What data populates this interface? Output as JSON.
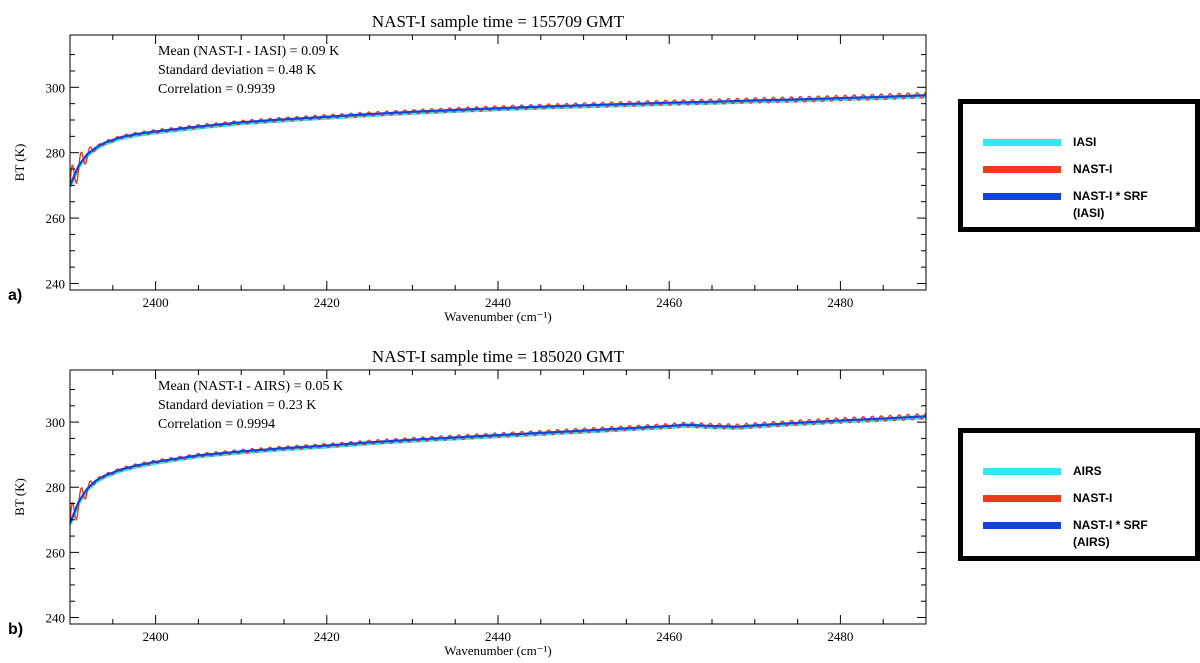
{
  "colors": {
    "ref": "#33e6f0",
    "nast": "#f23a1a",
    "conv": "#1144dd",
    "frame": "#000000"
  },
  "chart_data": [
    {
      "type": "line",
      "panel": "a)",
      "title": "NAST-I sample time = 155709 GMT",
      "xlabel": "Wavenumber (cm⁻¹)",
      "ylabel": "BT (K)",
      "xlim": [
        2390,
        2490
      ],
      "ylim": [
        238,
        316
      ],
      "xticks": [
        2400,
        2420,
        2440,
        2460,
        2480
      ],
      "yticks": [
        240,
        260,
        280,
        300
      ],
      "grid": false,
      "legend_position": "right",
      "annotations": [
        "Mean (NAST-I - IASI) = 0.09 K",
        "Standard deviation = 0.48 K",
        "Correlation = 0.9939"
      ],
      "series": [
        {
          "name": "IASI",
          "color": "ref",
          "x": [
            2390,
            2391,
            2392,
            2393,
            2394,
            2396,
            2398,
            2400,
            2405,
            2410,
            2415,
            2420,
            2425,
            2430,
            2435,
            2440,
            2445,
            2450,
            2455,
            2460,
            2465,
            2470,
            2475,
            2480,
            2485,
            2490
          ],
          "y": [
            270,
            276,
            279.5,
            281.5,
            283,
            284.8,
            285.8,
            286.5,
            288,
            289.3,
            290.2,
            291,
            291.8,
            292.5,
            293.1,
            293.6,
            294.1,
            294.5,
            294.9,
            295.3,
            295.6,
            296,
            296.3,
            296.7,
            297.1,
            297.6
          ]
        },
        {
          "name": "NAST-I",
          "color": "nast",
          "x": [
            2390,
            2391,
            2392,
            2393,
            2394,
            2396,
            2398,
            2400,
            2405,
            2410,
            2415,
            2420,
            2425,
            2430,
            2435,
            2440,
            2445,
            2450,
            2455,
            2460,
            2465,
            2470,
            2475,
            2480,
            2485,
            2490
          ],
          "y": [
            270,
            276,
            279.5,
            281.5,
            283,
            284.8,
            285.8,
            286.5,
            288,
            289.3,
            290.2,
            291,
            291.8,
            292.5,
            293.1,
            293.6,
            294.1,
            294.5,
            294.9,
            295.3,
            295.6,
            296,
            296.3,
            296.7,
            297.1,
            297.6
          ]
        },
        {
          "name": "NAST-I * SRF\n(IASI)",
          "color": "conv",
          "x": [
            2390,
            2391,
            2392,
            2393,
            2394,
            2396,
            2398,
            2400,
            2405,
            2410,
            2415,
            2420,
            2425,
            2430,
            2435,
            2440,
            2445,
            2450,
            2455,
            2460,
            2465,
            2470,
            2475,
            2480,
            2485,
            2490
          ],
          "y": [
            270,
            276,
            279.5,
            281.5,
            283,
            284.8,
            285.8,
            286.5,
            288,
            289.3,
            290.2,
            291,
            291.8,
            292.5,
            293.1,
            293.6,
            294.1,
            294.5,
            294.9,
            295.3,
            295.6,
            296,
            296.3,
            296.7,
            297.1,
            297.6
          ]
        }
      ]
    },
    {
      "type": "line",
      "panel": "b)",
      "title": "NAST-I sample time = 185020 GMT",
      "xlabel": "Wavenumber (cm⁻¹)",
      "ylabel": "BT (K)",
      "xlim": [
        2390,
        2490
      ],
      "ylim": [
        238,
        316
      ],
      "xticks": [
        2400,
        2420,
        2440,
        2460,
        2480
      ],
      "yticks": [
        240,
        260,
        280,
        300
      ],
      "grid": false,
      "legend_position": "right",
      "annotations": [
        "Mean (NAST-I - AIRS) = 0.05 K",
        "Standard deviation = 0.23 K",
        "Correlation = 0.9994"
      ],
      "series": [
        {
          "name": "AIRS",
          "color": "ref",
          "x": [
            2390,
            2391,
            2392,
            2393,
            2394,
            2396,
            2398,
            2400,
            2405,
            2410,
            2415,
            2420,
            2425,
            2430,
            2435,
            2440,
            2445,
            2450,
            2455,
            2460,
            2462,
            2465,
            2468,
            2470,
            2475,
            2480,
            2485,
            2490
          ],
          "y": [
            269,
            275.5,
            279.5,
            282,
            283.5,
            285.5,
            286.8,
            287.8,
            289.8,
            291,
            292,
            292.8,
            293.8,
            294.6,
            295.3,
            296,
            296.7,
            297.4,
            298.1,
            298.8,
            299.2,
            298.8,
            298.6,
            299,
            299.8,
            300.5,
            301.1,
            301.8
          ]
        },
        {
          "name": "NAST-I",
          "color": "nast",
          "x": [
            2390,
            2391,
            2392,
            2393,
            2394,
            2396,
            2398,
            2400,
            2405,
            2410,
            2415,
            2420,
            2425,
            2430,
            2435,
            2440,
            2445,
            2450,
            2455,
            2460,
            2462,
            2465,
            2468,
            2470,
            2475,
            2480,
            2485,
            2490
          ],
          "y": [
            269,
            275.5,
            279.5,
            282,
            283.5,
            285.5,
            286.8,
            287.8,
            289.8,
            291,
            292,
            292.8,
            293.8,
            294.6,
            295.3,
            296,
            296.7,
            297.4,
            298.1,
            298.8,
            299.2,
            298.8,
            298.6,
            299,
            299.8,
            300.5,
            301.1,
            301.8
          ]
        },
        {
          "name": "NAST-I * SRF\n(AIRS)",
          "color": "conv",
          "x": [
            2390,
            2391,
            2392,
            2393,
            2394,
            2396,
            2398,
            2400,
            2405,
            2410,
            2415,
            2420,
            2425,
            2430,
            2435,
            2440,
            2445,
            2450,
            2455,
            2460,
            2462,
            2465,
            2468,
            2470,
            2475,
            2480,
            2485,
            2490
          ],
          "y": [
            269,
            275.5,
            279.5,
            282,
            283.5,
            285.5,
            286.8,
            287.8,
            289.8,
            291,
            292,
            292.8,
            293.8,
            294.6,
            295.3,
            296,
            296.7,
            297.4,
            298.1,
            298.8,
            299.2,
            298.8,
            298.6,
            299,
            299.8,
            300.5,
            301.1,
            301.8
          ]
        }
      ]
    }
  ]
}
